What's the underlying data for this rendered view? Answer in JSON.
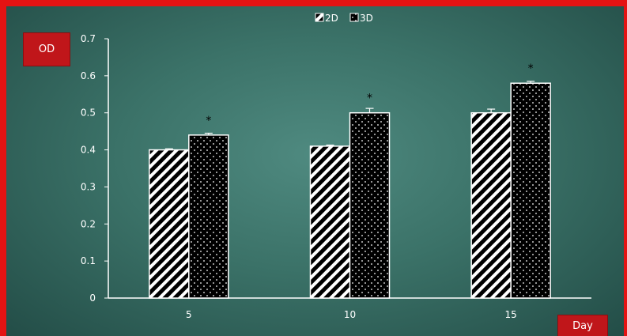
{
  "chart_data": {
    "type": "bar",
    "ylabel": "OD",
    "xlabel": "Day",
    "categories": [
      "5",
      "10",
      "15"
    ],
    "ylim": [
      0,
      0.7
    ],
    "yticks": [
      "0",
      "0.1",
      "0.2",
      "0.3",
      "0.4",
      "0.5",
      "0.6",
      "0.7"
    ],
    "legend_position": "top-center",
    "grid": false,
    "series": [
      {
        "name": "2D",
        "values": [
          0.4,
          0.41,
          0.5
        ],
        "errors": [
          0.003,
          0.003,
          0.01
        ],
        "pattern": "diagonal-stripes"
      },
      {
        "name": "3D",
        "values": [
          0.44,
          0.5,
          0.58
        ],
        "errors": [
          0.005,
          0.012,
          0.005
        ],
        "pattern": "dots"
      }
    ],
    "significance_marks": [
      "*",
      "*",
      "*"
    ],
    "colors": {
      "background": "#3b7268",
      "frame": "#e41313",
      "label_box": "#c0161a",
      "bar_fill": "#000000",
      "bar_stroke": "#ffffff",
      "axis": "#ffffff"
    }
  }
}
